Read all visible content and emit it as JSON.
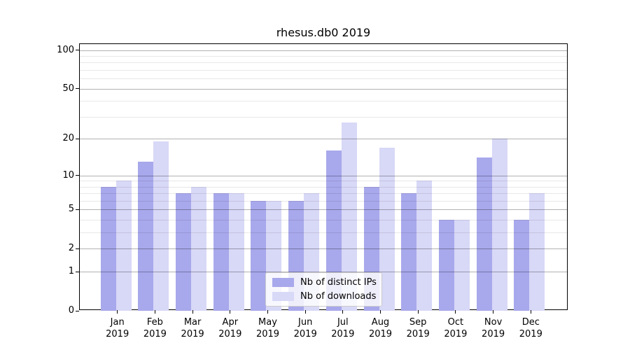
{
  "title": "rhesus.db0 2019",
  "chart_data": {
    "type": "bar",
    "title": "rhesus.db0 2019",
    "scale": "log1p",
    "categories": [
      "Jan 2019",
      "Feb 2019",
      "Mar 2019",
      "Apr 2019",
      "May 2019",
      "Jun 2019",
      "Jul 2019",
      "Aug 2019",
      "Sep 2019",
      "Oct 2019",
      "Nov 2019",
      "Dec 2019"
    ],
    "series": [
      {
        "name": "Nb of distinct IPs",
        "color": "#a8a8ec",
        "values": [
          8,
          13,
          7,
          7,
          6,
          6,
          16,
          8,
          7,
          4,
          14,
          4
        ]
      },
      {
        "name": "Nb of downloads",
        "color": "#d8d8f7",
        "values": [
          9,
          19,
          8,
          7,
          6,
          7,
          27,
          17,
          9,
          4,
          20,
          7
        ]
      }
    ],
    "y_major_ticks": [
      0,
      1,
      2,
      5,
      10,
      20,
      50,
      100
    ],
    "y_minor_ticks": [
      3,
      4,
      6,
      7,
      8,
      9,
      30,
      40,
      60,
      70,
      80,
      90
    ],
    "ylim": [
      0,
      112
    ],
    "xlabel": "",
    "ylabel": "",
    "grid": true,
    "legend_position": "lower center"
  },
  "legend": {
    "entries": [
      {
        "label": "Nb of distinct IPs",
        "color": "#a8a8ec"
      },
      {
        "label": "Nb of downloads",
        "color": "#d8d8f7"
      }
    ]
  },
  "colors": {
    "background": "#ffffff",
    "axis": "#000000",
    "bar_ips": "#a8a8ec",
    "bar_downloads": "#d8d8f7",
    "major_grid": "#b3b3b3",
    "minor_grid": "#e8e8e8",
    "legend_border": "#cccccc"
  }
}
